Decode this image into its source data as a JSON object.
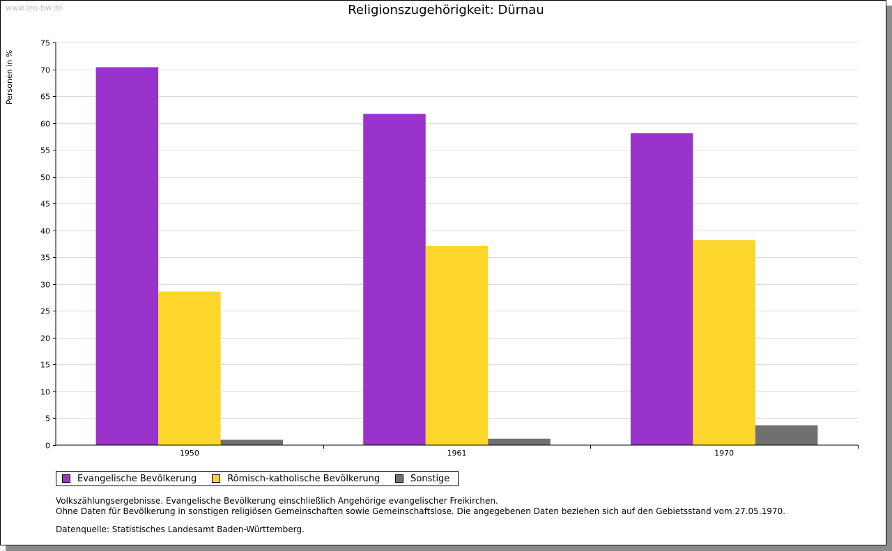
{
  "watermark": "www.leo-bw.de",
  "notes": {
    "line1": "Volkszählungsergebnisse. Evangelische Bevölkerung einschließlich Angehörige evangelischer Freikirchen.",
    "line2": "Ohne Daten für Bevölkerung in sonstigen religiösen Gemeinschaften sowie Gemeinschaftslose. Die angegebenen Daten beziehen sich auf den Gebietsstand vom 27.05.1970.",
    "source": "Datenquelle: Statistisches Landesamt Baden-Württemberg."
  },
  "chart_data": {
    "type": "bar",
    "title": "Religionszugehörigkeit: Dürnau",
    "xlabel": "",
    "ylabel": "Personen in %",
    "ylim": [
      0,
      75
    ],
    "yticks": [
      0,
      5,
      10,
      15,
      20,
      25,
      30,
      35,
      40,
      45,
      50,
      55,
      60,
      65,
      70,
      75
    ],
    "grid": true,
    "legend_position": "bottom-left",
    "categories": [
      "1950",
      "1961",
      "1970"
    ],
    "series": [
      {
        "name": "Evangelische Bevölkerung",
        "color": "#9933cc",
        "values": [
          70.4,
          61.7,
          58.1
        ]
      },
      {
        "name": "Römisch-katholische Bevölkerung",
        "color": "#fcd62c",
        "values": [
          28.6,
          37.1,
          38.2
        ]
      },
      {
        "name": "Sonstige",
        "color": "#707070",
        "values": [
          1.0,
          1.2,
          3.7
        ]
      }
    ]
  }
}
